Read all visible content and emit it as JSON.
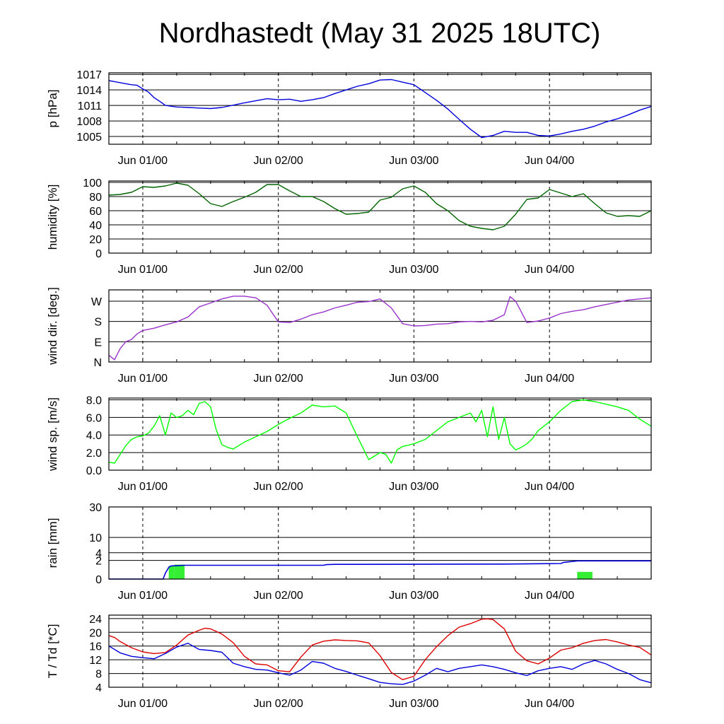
{
  "title": "Nordhastedt (May 31 2025 18UTC)",
  "date_labels": [
    "Jun 01/00",
    "Jun 02/00",
    "Jun 03/00",
    "Jun 04/00"
  ],
  "chart_data": [
    {
      "type": "line",
      "id": "pressure",
      "ylabel": "p [hPa]",
      "ylim": [
        1003.5,
        1017.3
      ],
      "ytick_values": [
        1005,
        1008,
        1011,
        1014,
        1017
      ],
      "yticks": [
        "1005",
        "1008",
        "1011",
        "1014",
        "1017"
      ],
      "x_unit": "hours since May 31 18UTC",
      "xlim": [
        0,
        96
      ],
      "color": "#0000dd",
      "x": [
        0,
        1,
        2,
        3,
        4,
        5,
        6,
        7,
        8,
        9,
        10,
        12,
        14,
        16,
        18,
        20,
        24,
        28,
        30,
        32,
        34,
        36,
        38,
        40,
        42,
        44,
        46,
        48,
        50,
        52,
        54,
        56,
        58,
        60,
        62,
        64,
        66,
        68,
        70,
        72,
        74,
        76,
        78,
        80,
        82,
        84,
        86,
        88,
        90,
        92,
        94,
        96
      ],
      "values": [
        1015.8,
        1015.6,
        1015.4,
        1015.2,
        1015.0,
        1014.9,
        1014.2,
        1013.6,
        1012.5,
        1011.8,
        1011.0,
        1010.7,
        1010.6,
        1010.5,
        1010.4,
        1010.6,
        1011.5,
        1012.3,
        1012.1,
        1012.2,
        1011.8,
        1012.1,
        1012.5,
        1013.3,
        1014.0,
        1014.7,
        1015.2,
        1015.9,
        1016.0,
        1015.5,
        1015.0,
        1013.5,
        1012.0,
        1010.3,
        1008.3,
        1006.4,
        1004.8,
        1005.2,
        1006.0,
        1005.8,
        1005.8,
        1005.2,
        1005.1,
        1005.5,
        1006.0,
        1006.4,
        1007.0,
        1007.8,
        1008.4,
        1009.2,
        1010.1,
        1010.8
      ]
    },
    {
      "type": "line",
      "id": "humidity",
      "ylabel": "humidity [%]",
      "ylim": [
        0,
        102
      ],
      "ytick_values": [
        0,
        20,
        40,
        60,
        80,
        100
      ],
      "yticks": [
        "0",
        "20",
        "40",
        "60",
        "80",
        "100"
      ],
      "x_unit": "hours since May 31 18UTC",
      "xlim": [
        0,
        96
      ],
      "color": "#006400",
      "x": [
        0,
        2,
        4,
        6,
        8,
        10,
        12,
        14,
        16,
        18,
        20,
        22,
        24,
        26,
        28,
        30,
        32,
        34,
        36,
        38,
        40,
        42,
        44,
        46,
        48,
        50,
        52,
        54,
        56,
        58,
        60,
        62,
        64,
        66,
        68,
        70,
        72,
        74,
        76,
        78,
        80,
        82,
        84,
        86,
        88,
        90,
        92,
        94,
        96
      ],
      "values": [
        82,
        83,
        86,
        94,
        93,
        95,
        99,
        96,
        84,
        70,
        66,
        73,
        79,
        86,
        97,
        97,
        88,
        80,
        80,
        73,
        63,
        55,
        56,
        58,
        75,
        79,
        91,
        95,
        86,
        70,
        60,
        46,
        38,
        35,
        33,
        38,
        55,
        76,
        78,
        90,
        85,
        80,
        84,
        70,
        57,
        52,
        53,
        52,
        60
      ]
    },
    {
      "type": "line",
      "id": "wind_direction",
      "ylabel": "wind dir. [deg.]",
      "ylim": [
        0,
        320
      ],
      "ytick_values": [
        0,
        90,
        180,
        270
      ],
      "yticks": [
        "N",
        "E",
        "S",
        "W"
      ],
      "x_unit": "hours since May 31 18UTC",
      "xlim": [
        0,
        96
      ],
      "color": "#9933cc",
      "x": [
        0,
        1,
        2,
        3,
        4,
        5,
        6,
        8,
        10,
        12,
        14,
        16,
        18,
        20,
        22,
        24,
        26,
        28,
        30,
        32,
        34,
        36,
        38,
        40,
        42,
        44,
        46,
        48,
        50,
        52,
        54,
        56,
        58,
        60,
        62,
        64,
        66,
        68,
        70,
        71,
        72,
        74,
        76,
        78,
        80,
        82,
        84,
        86,
        88,
        90,
        92,
        94,
        96
      ],
      "values": [
        30,
        10,
        60,
        90,
        100,
        125,
        140,
        150,
        165,
        178,
        200,
        245,
        262,
        280,
        292,
        292,
        285,
        252,
        178,
        175,
        190,
        210,
        222,
        240,
        252,
        265,
        268,
        280,
        240,
        170,
        160,
        162,
        168,
        170,
        178,
        180,
        178,
        185,
        210,
        290,
        270,
        175,
        182,
        195,
        215,
        225,
        232,
        245,
        255,
        265,
        275,
        280,
        285
      ]
    },
    {
      "type": "line",
      "id": "wind_speed",
      "ylabel": "wind sp. [m/s]",
      "ylim": [
        0,
        8.2
      ],
      "ytick_values": [
        0,
        2,
        4,
        6,
        8
      ],
      "yticks": [
        "0.0",
        "2.0",
        "4.0",
        "6.0",
        "8.0"
      ],
      "x_unit": "hours since May 31 18UTC",
      "xlim": [
        0,
        96
      ],
      "color": "#00ff00",
      "x": [
        0,
        1,
        2,
        3,
        4,
        5,
        6,
        7,
        8,
        9,
        10,
        11,
        12,
        13,
        14,
        15,
        16,
        17,
        18,
        19,
        20,
        21,
        22,
        24,
        26,
        28,
        30,
        32,
        34,
        36,
        38,
        40,
        42,
        44,
        46,
        48,
        49,
        50,
        51,
        52,
        54,
        56,
        58,
        60,
        62,
        64,
        65,
        66,
        67,
        68,
        69,
        70,
        71,
        72,
        73,
        74,
        75,
        76,
        78,
        80,
        82,
        84,
        86,
        88,
        90,
        92,
        94,
        96
      ],
      "values": [
        0.9,
        0.8,
        1.8,
        2.8,
        3.5,
        3.8,
        3.9,
        4.2,
        5.0,
        6.2,
        4.0,
        6.5,
        6.0,
        6.2,
        6.8,
        6.3,
        7.6,
        7.8,
        7.2,
        4.6,
        2.9,
        2.6,
        2.4,
        3.2,
        3.8,
        4.4,
        5.2,
        5.9,
        6.5,
        7.4,
        7.2,
        7.3,
        6.5,
        3.8,
        1.2,
        2.0,
        1.8,
        0.8,
        2.3,
        2.7,
        3.0,
        3.5,
        4.5,
        5.5,
        6.0,
        6.5,
        5.5,
        6.8,
        3.8,
        7.2,
        3.5,
        6.0,
        3.0,
        2.3,
        2.6,
        3.0,
        3.6,
        4.5,
        5.5,
        6.8,
        7.8,
        8.0,
        7.8,
        7.5,
        7.2,
        6.8,
        5.8,
        5.0
      ]
    },
    {
      "type": "bar+line",
      "id": "rain",
      "ylabel": "rain [mm]",
      "ylim": [
        0,
        30
      ],
      "scale": "sqrt-like",
      "ytick_values": [
        0,
        2,
        4,
        10,
        30
      ],
      "yticks": [
        "0",
        "2",
        "4",
        "10",
        "30"
      ],
      "x_unit": "hours since May 31 18UTC",
      "xlim": [
        0,
        96
      ],
      "bar_color": "#33ee33",
      "line_color": "#0000dd",
      "bars": [
        {
          "x0": 10.6,
          "x1": 11.6,
          "value": 1.0
        },
        {
          "x0": 11.6,
          "x1": 13.4,
          "value": 1.2
        },
        {
          "x0": 82.9,
          "x1": 85.6,
          "value": 0.3
        }
      ],
      "accumulated_x": [
        0,
        9.6,
        10.0,
        10.6,
        11.0,
        13.5,
        38,
        38.5,
        40,
        70,
        80,
        80.5,
        83,
        84,
        96
      ],
      "accumulated": [
        0,
        0,
        0.2,
        0.8,
        1.0,
        1.1,
        1.1,
        1.2,
        1.25,
        1.3,
        1.4,
        1.6,
        1.9,
        1.9,
        1.9
      ]
    },
    {
      "type": "line",
      "id": "temperature",
      "ylabel": "T / Td [*C]",
      "ylim": [
        4,
        25
      ],
      "ytick_values": [
        4,
        8,
        12,
        16,
        20,
        24
      ],
      "yticks": [
        "4",
        "8",
        "12",
        "16",
        "20",
        "24"
      ],
      "x_unit": "hours since May 31 18UTC",
      "xlim": [
        0,
        96
      ],
      "series": [
        {
          "color": "#dd0000",
          "x": [
            0,
            1,
            2,
            4,
            6,
            8,
            10,
            12,
            14,
            16,
            17,
            18,
            20,
            22,
            24,
            26,
            28,
            30,
            32,
            34,
            36,
            38,
            40,
            42,
            44,
            46,
            48,
            50,
            52,
            54,
            56,
            58,
            60,
            62,
            64,
            66,
            67,
            68,
            70,
            72,
            74,
            76,
            78,
            80,
            82,
            84,
            86,
            88,
            90,
            92,
            94,
            96
          ],
          "values": [
            19.0,
            18.5,
            17.3,
            15.5,
            14.3,
            13.8,
            14.1,
            16.3,
            19.2,
            20.6,
            21.2,
            21.0,
            19.5,
            17.0,
            13.0,
            10.8,
            10.5,
            8.8,
            8.5,
            12.8,
            16.3,
            17.4,
            17.8,
            17.6,
            17.5,
            16.9,
            13.2,
            8.3,
            6.2,
            7.2,
            12.0,
            15.8,
            19.0,
            21.5,
            22.5,
            23.8,
            23.9,
            23.7,
            21.0,
            14.5,
            11.7,
            10.8,
            12.5,
            14.8,
            15.5,
            16.8,
            17.6,
            17.9,
            17.2,
            16.3,
            15.6,
            13.4
          ]
        },
        {
          "color": "#0000dd",
          "x": [
            0,
            2,
            4,
            6,
            8,
            10,
            12,
            14,
            16,
            18,
            20,
            22,
            24,
            26,
            28,
            30,
            32,
            34,
            36,
            38,
            40,
            42,
            44,
            46,
            48,
            50,
            52,
            54,
            56,
            58,
            60,
            62,
            64,
            66,
            68,
            70,
            72,
            74,
            76,
            78,
            80,
            82,
            84,
            86,
            88,
            90,
            92,
            94,
            96
          ],
          "values": [
            16.0,
            14.0,
            13.0,
            12.6,
            12.3,
            13.8,
            15.7,
            16.8,
            15.0,
            14.7,
            14.2,
            11.0,
            10.0,
            9.2,
            9.0,
            8.2,
            7.5,
            9.0,
            11.5,
            11.0,
            9.5,
            8.6,
            7.5,
            6.5,
            5.4,
            5.0,
            4.8,
            5.8,
            7.5,
            9.5,
            8.5,
            9.5,
            10.0,
            10.5,
            10.0,
            9.2,
            8.2,
            7.4,
            8.8,
            9.5,
            10.0,
            9.2,
            10.8,
            11.8,
            10.8,
            9.2,
            8.0,
            6.2,
            5.3
          ]
        }
      ]
    }
  ]
}
